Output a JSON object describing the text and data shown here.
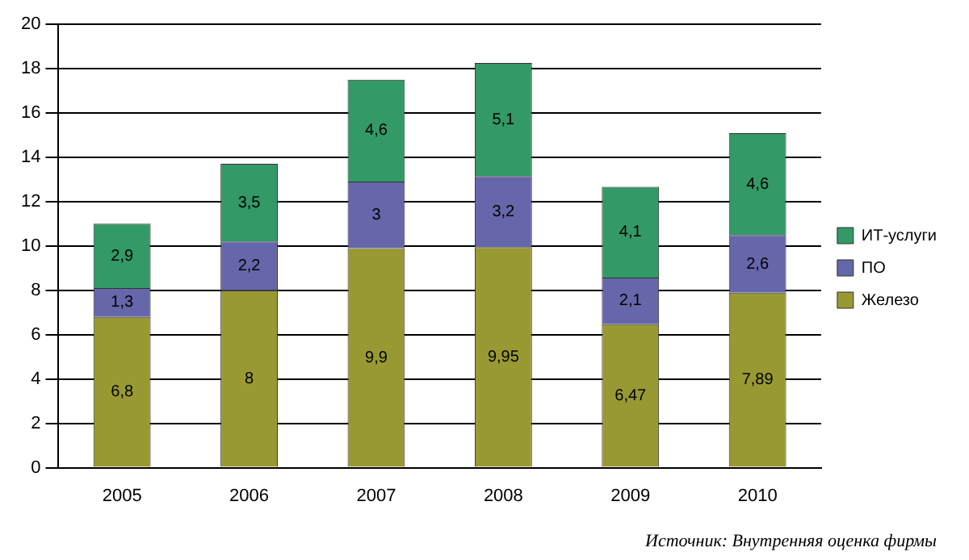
{
  "chart_data": {
    "type": "bar",
    "stacked": true,
    "categories": [
      "2005",
      "2006",
      "2007",
      "2008",
      "2009",
      "2010"
    ],
    "series": [
      {
        "name": "Железо",
        "color": "#999933",
        "values": [
          6.8,
          8,
          9.9,
          9.95,
          6.47,
          7.89
        ],
        "value_labels": [
          "6,8",
          "8",
          "9,9",
          "9,95",
          "6,47",
          "7,89"
        ]
      },
      {
        "name": "ПО",
        "color": "#6666aa",
        "values": [
          1.3,
          2.2,
          3,
          3.2,
          2.1,
          2.6
        ],
        "value_labels": [
          "1,3",
          "2,2",
          "3",
          "3,2",
          "2,1",
          "2,6"
        ]
      },
      {
        "name": "ИТ-услуги",
        "color": "#339966",
        "values": [
          2.9,
          3.5,
          4.6,
          5.1,
          4.1,
          4.6
        ],
        "value_labels": [
          "2,9",
          "3,5",
          "4,6",
          "5,1",
          "4,1",
          "4,6"
        ]
      }
    ],
    "ylim": [
      0,
      20
    ],
    "yticks": [
      0,
      2,
      4,
      6,
      8,
      10,
      12,
      14,
      16,
      18,
      20
    ],
    "grid": "y",
    "legend": "right",
    "annotations": [
      "Источник: Внутренняя оценка фирмы"
    ]
  }
}
